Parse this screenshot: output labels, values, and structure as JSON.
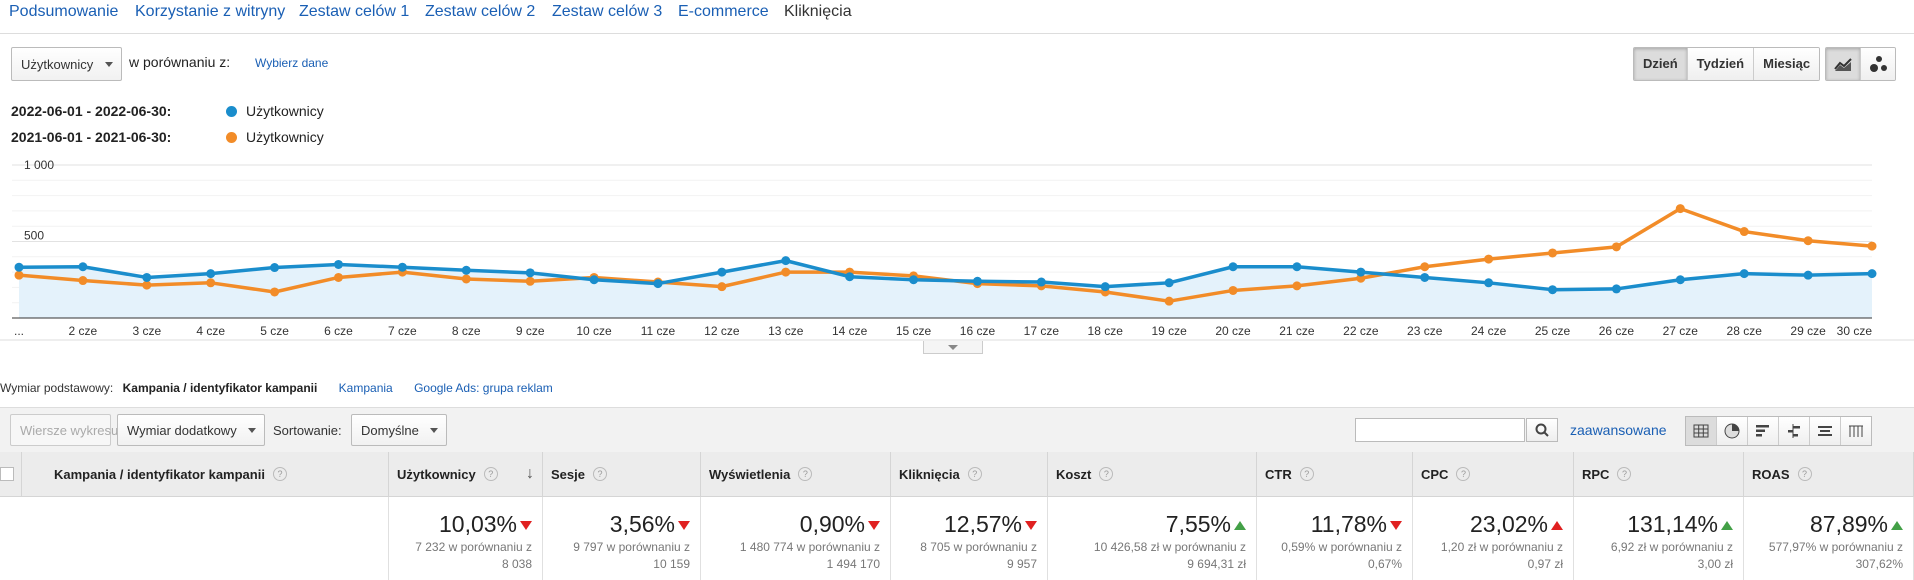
{
  "tabs": [
    "Podsumowanie",
    "Korzystanie z witryny",
    "Zestaw celów 1",
    "Zestaw celów 2",
    "Zestaw celów 3",
    "E-commerce",
    "Kliknięcia"
  ],
  "controls": {
    "metric": "Użytkownicy",
    "compare_label": "w porównaniu z:",
    "choose_link": "Wybierz dane",
    "periods": [
      "Dzień",
      "Tydzień",
      "Miesiąc"
    ],
    "chart_type_icons": [
      "line-chart-icon",
      "motion-chart-icon"
    ]
  },
  "legend": [
    {
      "range": "2022-06-01 - 2022-06-30:",
      "metric": "Użytkownicy",
      "color": "#1a8dcc"
    },
    {
      "range": "2021-06-01 - 2021-06-30:",
      "metric": "Użytkownicy",
      "color": "#f28c28"
    }
  ],
  "chart_data": {
    "type": "line",
    "categories": [
      "...",
      "2 cze",
      "3 cze",
      "4 cze",
      "5 cze",
      "6 cze",
      "7 cze",
      "8 cze",
      "9 cze",
      "10 cze",
      "11 cze",
      "12 cze",
      "13 cze",
      "14 cze",
      "15 cze",
      "16 cze",
      "17 cze",
      "18 cze",
      "19 cze",
      "20 cze",
      "21 cze",
      "22 cze",
      "23 cze",
      "24 cze",
      "25 cze",
      "26 cze",
      "27 cze",
      "28 cze",
      "29 cze",
      "30 cze"
    ],
    "series": [
      {
        "name": "2022-06-01 - 2022-06-30",
        "color": "#1a8dcc",
        "values": [
          332,
          335,
          265,
          290,
          330,
          350,
          332,
          312,
          295,
          250,
          225,
          300,
          375,
          270,
          250,
          240,
          235,
          205,
          230,
          335,
          335,
          300,
          265,
          230,
          185,
          190,
          250,
          290,
          280,
          290
        ]
      },
      {
        "name": "2021-06-01 - 2021-06-30",
        "color": "#f28c28",
        "values": [
          280,
          245,
          215,
          230,
          170,
          265,
          300,
          255,
          240,
          265,
          235,
          205,
          300,
          300,
          275,
          225,
          210,
          170,
          110,
          180,
          210,
          260,
          335,
          385,
          425,
          465,
          715,
          565,
          505,
          470
        ]
      }
    ],
    "ylim": [
      0,
      1000
    ],
    "y_ticks": [
      "500",
      "1 000"
    ],
    "grid": true
  },
  "dimension_bar": {
    "label": "Wymiar podstawowy:",
    "active": "Kampania / identyfikator kampanii",
    "links": [
      "Kampania",
      "Google Ads: grupa reklam"
    ]
  },
  "toolbar": {
    "rows_button": "Wiersze wykresu",
    "secondary_dim": "Wymiar dodatkowy",
    "sort_label": "Sortowanie:",
    "sort_value": "Domyślne",
    "search_value": "",
    "advanced_link": "zaawansowane",
    "view_icons": [
      "table-view-icon",
      "pie-view-icon",
      "performance-view-icon",
      "comparison-view-icon",
      "term-cloud-icon",
      "pivot-view-icon"
    ]
  },
  "table": {
    "dim_header": "Kampania / identyfikator kampanii",
    "columns": [
      {
        "header": "Użytkownicy",
        "pct": "10,03%",
        "dir": "down",
        "cmp1": "7 232 w porównaniu z",
        "cmp2": "8 038"
      },
      {
        "header": "Sesje",
        "pct": "3,56%",
        "dir": "down",
        "cmp1": "9 797 w porównaniu z",
        "cmp2": "10 159"
      },
      {
        "header": "Wyświetlenia",
        "pct": "0,90%",
        "dir": "down",
        "cmp1": "1 480 774 w porównaniu z",
        "cmp2": "1 494 170"
      },
      {
        "header": "Kliknięcia",
        "pct": "12,57%",
        "dir": "down",
        "cmp1": "8 705 w porównaniu z",
        "cmp2": "9 957"
      },
      {
        "header": "Koszt",
        "pct": "7,55%",
        "dir": "up",
        "cmp1": "10 426,58 zł w porównaniu z",
        "cmp2": "9 694,31 zł"
      },
      {
        "header": "CTR",
        "pct": "11,78%",
        "dir": "down",
        "cmp1": "0,59% w porównaniu z",
        "cmp2": "0,67%"
      },
      {
        "header": "CPC",
        "pct": "23,02%",
        "dir": "up-red",
        "cmp1": "1,20 zł w porównaniu z",
        "cmp2": "0,97 zł"
      },
      {
        "header": "RPC",
        "pct": "131,14%",
        "dir": "up",
        "cmp1": "6,92 zł w porównaniu z",
        "cmp2": "3,00 zł"
      },
      {
        "header": "ROAS",
        "pct": "87,89%",
        "dir": "up",
        "cmp1": "577,97% w porównaniu z",
        "cmp2": "307,62%"
      }
    ]
  }
}
